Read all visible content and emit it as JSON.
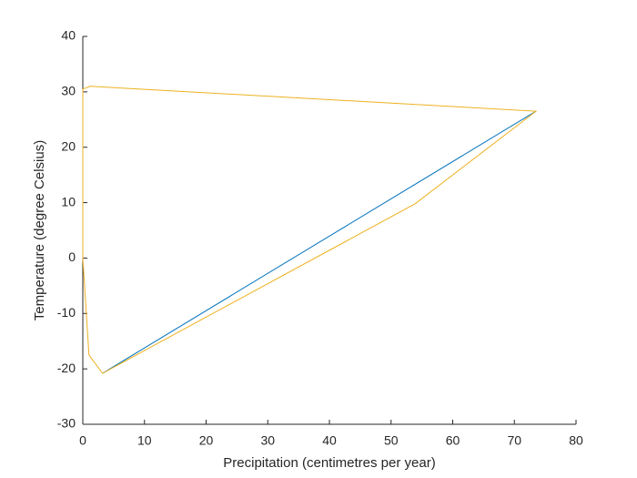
{
  "chart_data": {
    "type": "line",
    "x_label": "Precipitation (centimetres per year)",
    "y_label": "Temperature (degree Celsius)",
    "series": [
      {
        "color": "#0072bd",
        "x": [
          3.2,
          73.5
        ],
        "values": [
          -20.8,
          26.5
        ]
      },
      {
        "color": "#edb120",
        "x": [
          0,
          1.2,
          73.5,
          53.9,
          3.2,
          1.0,
          0,
          0
        ],
        "values": [
          30.5,
          31.0,
          26.5,
          9.8,
          -20.8,
          -17.5,
          0,
          30.5
        ]
      }
    ],
    "xlim": [
      0,
      80
    ],
    "xticks": [
      0,
      10,
      20,
      30,
      40,
      50,
      60,
      70,
      80
    ],
    "ylim": [
      -30,
      40
    ],
    "yticks": [
      -30,
      -20,
      -10,
      0,
      10,
      20,
      30,
      40
    ],
    "grid": false
  }
}
